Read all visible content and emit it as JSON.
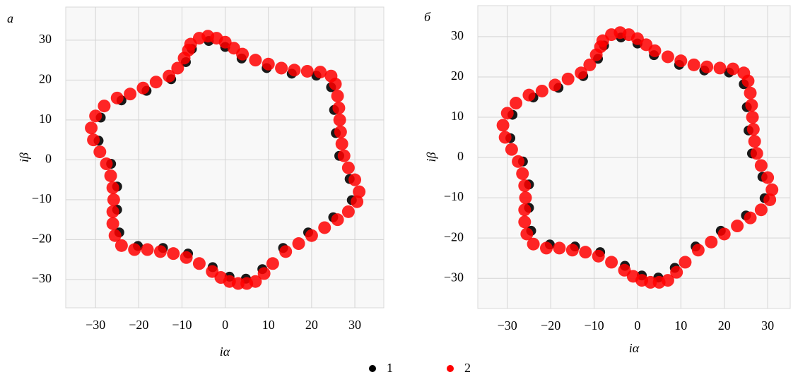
{
  "chart_data": [
    {
      "type": "scatter",
      "label": "а",
      "xlabel": "iα",
      "ylabel": "iβ",
      "grid": true,
      "xlim": [
        -36.9,
        36.7
      ],
      "ylim": [
        -37.1,
        38.3
      ],
      "xticks": [
        {
          "value": -30,
          "label": "−30"
        },
        {
          "value": -20,
          "label": "−20"
        },
        {
          "value": -10,
          "label": "−10"
        },
        0,
        10,
        20,
        30
      ],
      "yticks": [
        {
          "value": -30,
          "label": "−30"
        },
        {
          "value": -20,
          "label": "−20"
        },
        {
          "value": -10,
          "label": "−10"
        },
        0,
        10,
        20,
        30
      ],
      "series": [
        {
          "name": "1",
          "color": "#000000",
          "x": [
            -7.7,
            -3.8,
            0,
            3.8,
            9.6,
            15.4,
            21.1,
            24.5,
            25.2,
            25.6,
            26.4,
            28.8,
            29.3,
            25,
            19.2,
            13.4,
            8.6,
            4.8,
            1,
            -2.9,
            -8.6,
            -14.4,
            -20.2,
            -24.5,
            -25,
            -25,
            -26.4,
            -29.3,
            -28.8,
            -24,
            -18.2,
            -12.5,
            -9.1
          ],
          "y": [
            27.8,
            29.8,
            28.3,
            25.4,
            23,
            21.6,
            21.1,
            18.2,
            12.5,
            6.7,
            1,
            -4.8,
            -10.1,
            -14.4,
            -18.2,
            -22.1,
            -27.4,
            -29.8,
            -29.3,
            -26.9,
            -23.5,
            -22.1,
            -21.6,
            -18.2,
            -12.5,
            -6.7,
            -1,
            4.8,
            10.6,
            14.9,
            17.3,
            20.2,
            24.5
          ]
        },
        {
          "name": "2",
          "color": "#ff0000",
          "x": [
            -8,
            -6,
            -4,
            -2,
            0,
            2,
            4,
            7,
            10,
            13,
            16,
            19,
            22,
            24.5,
            25.5,
            26,
            26.3,
            26.5,
            26.7,
            27,
            27.5,
            28.5,
            30,
            31,
            30.5,
            28.5,
            26,
            23,
            20,
            17,
            14,
            11,
            9,
            7,
            5,
            3,
            1,
            -1,
            -3,
            -6,
            -9,
            -12,
            -15,
            -18,
            -21,
            -24,
            -25.5,
            -26,
            -26,
            -25.8,
            -26,
            -26.5,
            -27.5,
            -29,
            -30.5,
            -31,
            -30,
            -28,
            -25,
            -22,
            -19,
            -16,
            -13,
            -11,
            -9.5,
            -8.5
          ],
          "y": [
            29,
            30.5,
            31,
            30.5,
            29.5,
            28,
            26.5,
            25,
            24,
            23,
            22.5,
            22.2,
            22,
            21,
            19,
            16,
            13,
            10,
            7,
            4,
            1,
            -2,
            -5,
            -8,
            -10.5,
            -13,
            -15,
            -17,
            -19,
            -21,
            -23,
            -26,
            -28.5,
            -30.5,
            -31,
            -31,
            -30.5,
            -29.5,
            -28,
            -26,
            -24.5,
            -23.5,
            -23,
            -22.5,
            -22.5,
            -21.5,
            -19,
            -16,
            -13,
            -10,
            -7,
            -4,
            -1,
            2,
            5,
            8,
            11,
            13.5,
            15.5,
            16.5,
            18,
            19.5,
            21,
            23,
            25.5,
            27.5
          ]
        }
      ]
    },
    {
      "type": "scatter",
      "label": "б",
      "xlabel": "iα",
      "ylabel": "iβ",
      "grid": true,
      "xlim": [
        -36.8,
        35.2
      ],
      "ylim": [
        -37.5,
        37.7
      ],
      "xticks": [
        {
          "value": -30,
          "label": "−30"
        },
        {
          "value": -20,
          "label": "−20"
        },
        {
          "value": -10,
          "label": "−10"
        },
        0,
        10,
        20,
        30
      ],
      "yticks": [
        {
          "value": -30,
          "label": "−30"
        },
        {
          "value": -20,
          "label": "−20"
        },
        {
          "value": -10,
          "label": "−10"
        },
        0,
        10,
        20,
        30
      ],
      "series": [
        {
          "color": "#000000",
          "x": [
            -7.7,
            -3.8,
            0,
            3.8,
            9.6,
            15.4,
            21.1,
            24.5,
            25.2,
            25.6,
            26.4,
            28.8,
            29.3,
            25,
            19.2,
            13.4,
            8.6,
            4.8,
            1,
            -2.9,
            -8.6,
            -14.4,
            -20.2,
            -24.5,
            -25,
            -25,
            -26.4,
            -29.3,
            -28.8,
            -24,
            -18.2,
            -12.5,
            -9.1
          ],
          "y": [
            27.8,
            29.8,
            28.3,
            25.4,
            23,
            21.6,
            21.1,
            18.2,
            12.5,
            6.7,
            1,
            -4.8,
            -10.1,
            -14.4,
            -18.2,
            -22.1,
            -27.4,
            -29.8,
            -29.3,
            -26.9,
            -23.5,
            -22.1,
            -21.6,
            -18.2,
            -12.5,
            -6.7,
            -1,
            4.8,
            10.6,
            14.9,
            17.3,
            20.2,
            24.5
          ]
        },
        {
          "color": "#ff0000",
          "x": [
            -8,
            -6,
            -4,
            -2,
            0,
            2,
            4,
            7,
            10,
            13,
            16,
            19,
            22,
            24.5,
            25.5,
            26,
            26.3,
            26.5,
            26.7,
            27,
            27.5,
            28.5,
            30,
            31,
            30.5,
            28.5,
            26,
            23,
            20,
            17,
            14,
            11,
            9,
            7,
            5,
            3,
            1,
            -1,
            -3,
            -6,
            -9,
            -12,
            -15,
            -18,
            -21,
            -24,
            -25.5,
            -26,
            -26,
            -25.8,
            -26,
            -26.5,
            -27.5,
            -29,
            -30.5,
            -31,
            -30,
            -28,
            -25,
            -22,
            -19,
            -16,
            -13,
            -11,
            -9.5,
            -8.5
          ],
          "y": [
            29,
            30.5,
            31,
            30.5,
            29.5,
            28,
            26.5,
            25,
            24,
            23,
            22.5,
            22.2,
            22,
            21,
            19,
            16,
            13,
            10,
            7,
            4,
            1,
            -2,
            -5,
            -8,
            -10.5,
            -13,
            -15,
            -17,
            -19,
            -21,
            -23,
            -26,
            -28.5,
            -30.5,
            -31,
            -31,
            -30.5,
            -29.5,
            -28,
            -26,
            -24.5,
            -23.5,
            -23,
            -22.5,
            -22.5,
            -21.5,
            -19,
            -16,
            -13,
            -10,
            -7,
            -4,
            -1,
            2,
            5,
            8,
            11,
            13.5,
            15.5,
            16.5,
            18,
            19.5,
            21,
            23,
            25.5,
            27.5
          ]
        }
      ]
    }
  ]
}
